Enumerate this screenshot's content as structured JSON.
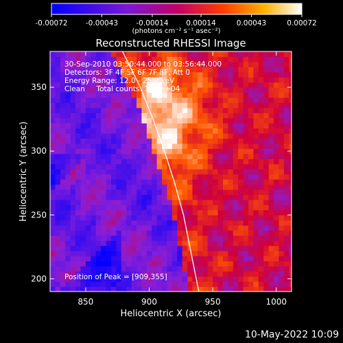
{
  "chart_data": {
    "type": "heatmap",
    "title": "Reconstructed RHESSI Image",
    "xlabel": "Heliocentric X (arcsec)",
    "ylabel": "Heliocentric Y (arcsec)",
    "xlim": [
      822,
      1012
    ],
    "ylim": [
      190,
      378
    ],
    "x_ticks": [
      850,
      900,
      950,
      1000
    ],
    "y_ticks": [
      200,
      250,
      300,
      350
    ],
    "colorbar": {
      "ticks": [
        -0.00072,
        -0.00043,
        -0.00014,
        0.00014,
        0.00043,
        0.00072
      ],
      "tick_labels": [
        "-0.00072",
        "-0.00043",
        "-0.00014",
        "0.00014",
        "0.00043",
        "0.00072"
      ],
      "units_label": "(photons cm⁻² s⁻¹ asec⁻²)",
      "range": [
        -0.00072,
        0.00072
      ],
      "colors": [
        "#0000ff",
        "#8a1fd6",
        "#d0003a",
        "#ff5a00",
        "#ffffff"
      ]
    },
    "annotations": [
      "30-Sep-2010 03:50:44.000 to 03:56:44.000",
      "Detectors: 3F 4F 5F 6F 7F 8F, Att 0",
      "Energy Range: 12.0 - 25.0 keV",
      "Clean     Total counts: 1.25e+04"
    ],
    "peak_label": "Position of Peak = [909,355]",
    "peak": [
      909,
      355
    ],
    "limb_line": [
      [
        879,
        378
      ],
      [
        893,
        350
      ],
      [
        903,
        325
      ],
      [
        912,
        300
      ],
      [
        920,
        275
      ],
      [
        927,
        250
      ],
      [
        932,
        225
      ],
      [
        937,
        200
      ],
      [
        939,
        190
      ]
    ]
  },
  "footer": {
    "timestamp": "10-May-2022 10:09"
  }
}
